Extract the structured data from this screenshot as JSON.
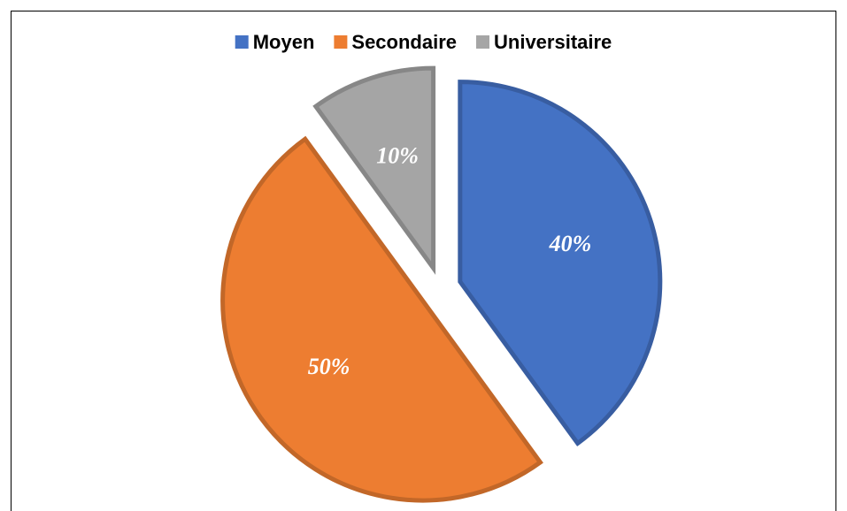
{
  "chart_data": {
    "type": "pie",
    "categories": [
      "Moyen",
      "Secondaire",
      "Universitaire"
    ],
    "values": [
      40,
      50,
      10
    ],
    "value_labels": [
      "40%",
      "50%",
      "10%"
    ],
    "colors": [
      "#4472c4",
      "#ed7d31",
      "#a5a5a5"
    ],
    "legend": "top"
  }
}
